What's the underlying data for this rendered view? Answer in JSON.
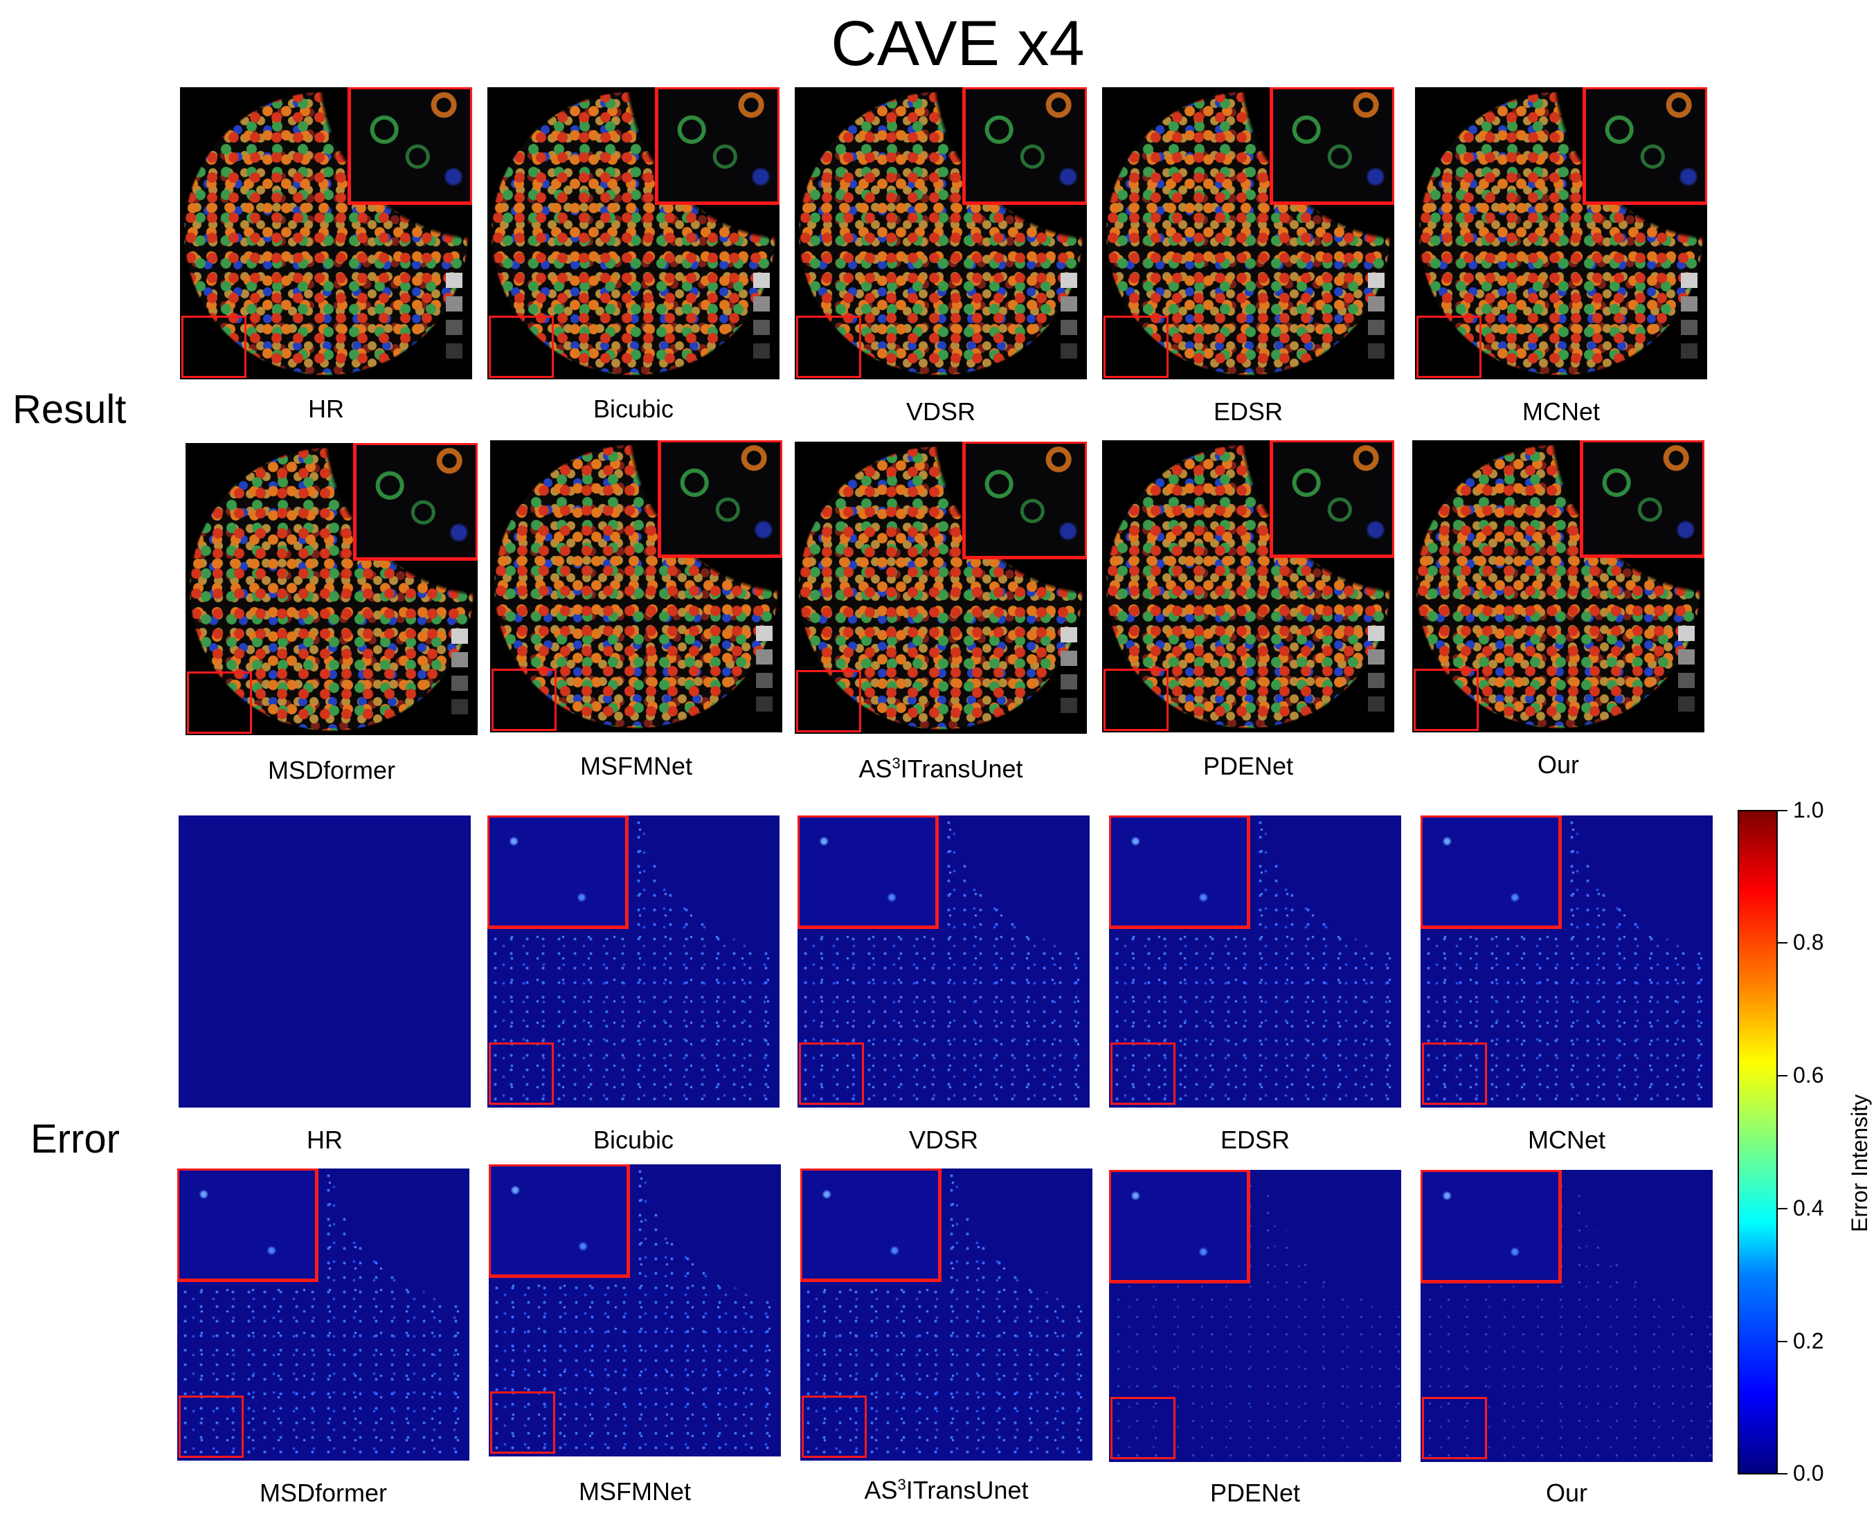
{
  "figure": {
    "title": "CAVE x4",
    "row_labels": {
      "result": "Result",
      "error": "Error"
    },
    "result_row1": [
      "HR",
      "Bicubic",
      "VDSR",
      "EDSR",
      "MCNet"
    ],
    "result_row2": [
      "MSDformer",
      "MSFMNet",
      "AS3ITransUnet",
      "PDENet",
      "Our"
    ],
    "error_row1": [
      "HR",
      "Bicubic",
      "VDSR",
      "EDSR",
      "MCNet"
    ],
    "error_row2": [
      "MSDformer",
      "MSFMNet",
      "AS3ITransUnet",
      "PDENet",
      "Our"
    ],
    "colorbar": {
      "label": "Error Intensity",
      "ticks": [
        "1.0",
        "0.8",
        "0.6",
        "0.4",
        "0.2",
        "0.0"
      ],
      "colormap": "jet",
      "range": [
        0.0,
        1.0
      ]
    }
  },
  "colors": {
    "zoom_box": "#ff1a1a",
    "error_background": "#0a0a8c"
  }
}
